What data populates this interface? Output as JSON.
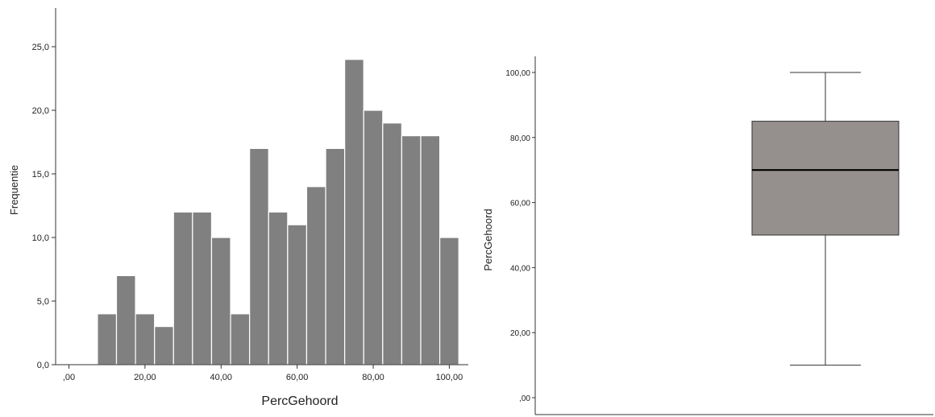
{
  "colors": {
    "bar_fill": "#808080",
    "bar_stroke": "#ffffff",
    "box_fill": "#958f8e",
    "box_stroke": "#333333",
    "axis": "#333333"
  },
  "chart_data": [
    {
      "type": "bar",
      "subtype": "histogram",
      "title": "",
      "xlabel": "PercGehoord",
      "ylabel": "Frequentie",
      "xlim": [
        -3.5,
        105
      ],
      "ylim": [
        0,
        25
      ],
      "x_ticks": [
        {
          "value": 0,
          "label": ",00"
        },
        {
          "value": 20,
          "label": "20,00"
        },
        {
          "value": 40,
          "label": "40,00"
        },
        {
          "value": 60,
          "label": "60,00"
        },
        {
          "value": 80,
          "label": "80,00"
        },
        {
          "value": 100,
          "label": "100,00"
        }
      ],
      "y_ticks": [
        {
          "value": 0,
          "label": "0,0"
        },
        {
          "value": 5,
          "label": "5,0"
        },
        {
          "value": 10,
          "label": "10,0"
        },
        {
          "value": 15,
          "label": "15,0"
        },
        {
          "value": 20,
          "label": "20,0"
        },
        {
          "value": 25,
          "label": "25,0"
        }
      ],
      "bin_width": 5,
      "bins": [
        {
          "start": 7.5,
          "count": 4
        },
        {
          "start": 12.5,
          "count": 7
        },
        {
          "start": 17.5,
          "count": 4
        },
        {
          "start": 22.5,
          "count": 3
        },
        {
          "start": 27.5,
          "count": 12
        },
        {
          "start": 32.5,
          "count": 12
        },
        {
          "start": 37.5,
          "count": 10
        },
        {
          "start": 42.5,
          "count": 4
        },
        {
          "start": 47.5,
          "count": 17
        },
        {
          "start": 52.5,
          "count": 12
        },
        {
          "start": 57.5,
          "count": 11
        },
        {
          "start": 62.5,
          "count": 14
        },
        {
          "start": 67.5,
          "count": 17
        },
        {
          "start": 72.5,
          "count": 24
        },
        {
          "start": 77.5,
          "count": 20
        },
        {
          "start": 82.5,
          "count": 19
        },
        {
          "start": 87.5,
          "count": 18
        },
        {
          "start": 92.5,
          "count": 18
        },
        {
          "start": 97.5,
          "count": 10
        }
      ],
      "grid": false
    },
    {
      "type": "box",
      "title": "",
      "ylabel": "PercGehoord",
      "ylim": [
        0,
        105
      ],
      "y_ticks": [
        {
          "value": 0,
          "label": ",00"
        },
        {
          "value": 20,
          "label": "20,00"
        },
        {
          "value": 40,
          "label": "40,00"
        },
        {
          "value": 60,
          "label": "60,00"
        },
        {
          "value": 80,
          "label": "80,00"
        },
        {
          "value": 100,
          "label": "100,00"
        }
      ],
      "whisker_low": 10,
      "q1": 50,
      "median": 70,
      "q3": 85,
      "whisker_high": 100,
      "grid": false
    }
  ]
}
